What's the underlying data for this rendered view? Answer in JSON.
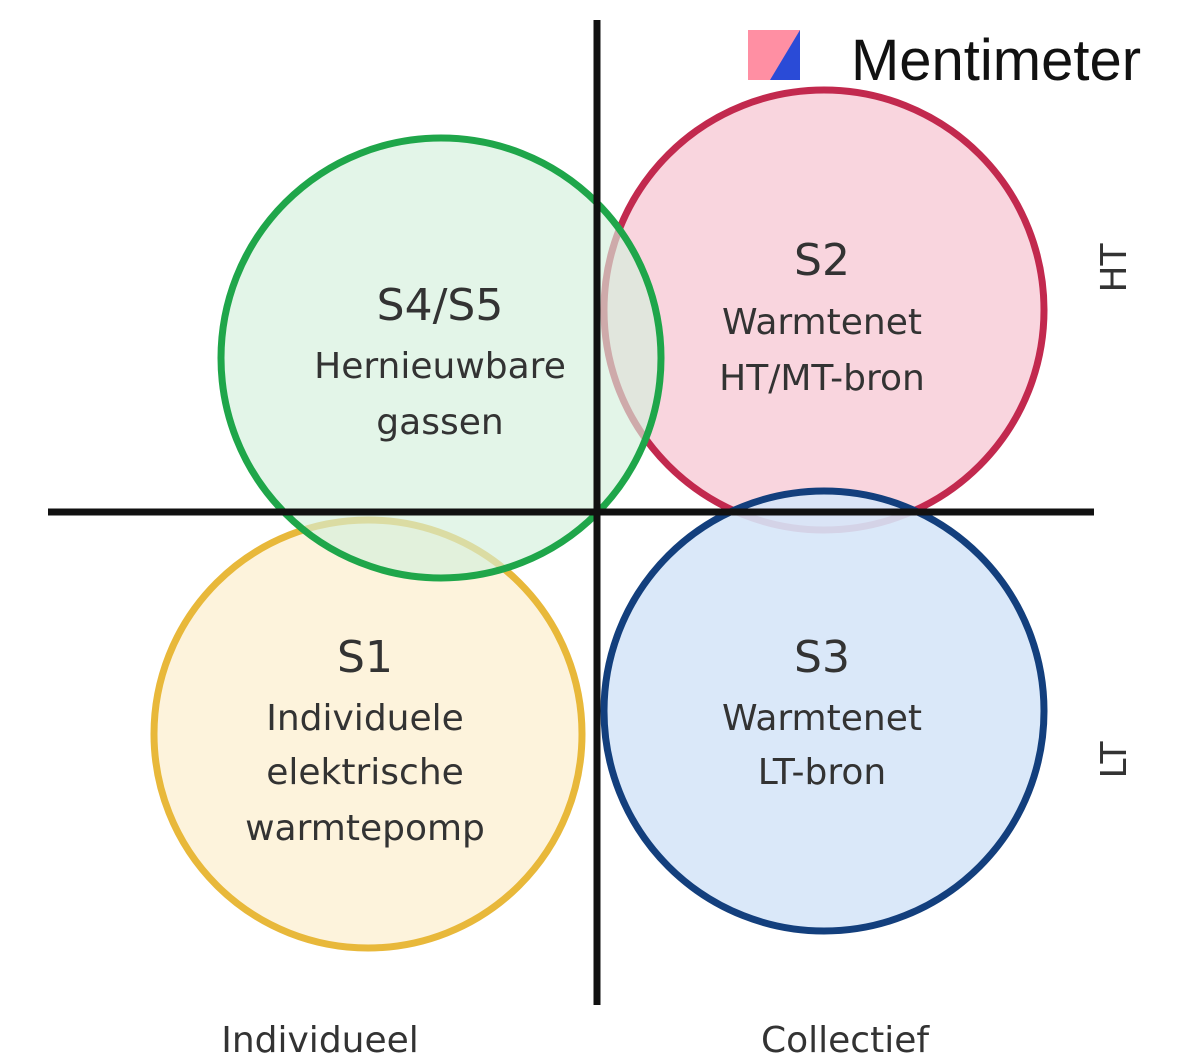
{
  "brand": "Mentimeter",
  "axes": {
    "x": [
      "Individueel",
      "Collectief"
    ],
    "y": [
      "HT",
      "LT"
    ]
  },
  "nodes": [
    {
      "id": "S1",
      "lines": [
        "Individuele",
        "elektrische",
        "warmtepomp"
      ]
    },
    {
      "id": "S2",
      "lines": [
        "Warmtenet",
        "HT/MT-bron"
      ]
    },
    {
      "id": "S3",
      "lines": [
        "Warmtenet",
        "LT-bron"
      ]
    },
    {
      "id": "S4/S5",
      "lines": [
        "Hernieuwbare",
        "gassen"
      ]
    }
  ]
}
